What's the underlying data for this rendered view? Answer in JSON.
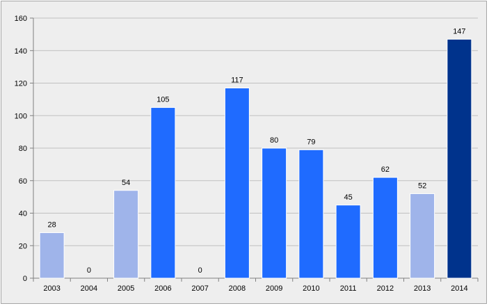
{
  "chart_data": {
    "type": "bar",
    "title": "",
    "xlabel": "",
    "ylabel": "",
    "categories": [
      "2003",
      "2004",
      "2005",
      "2006",
      "2007",
      "2008",
      "2009",
      "2010",
      "2011",
      "2012",
      "2013",
      "2014"
    ],
    "values": [
      28,
      0,
      54,
      105,
      0,
      117,
      80,
      79,
      45,
      62,
      52,
      147
    ],
    "bar_colors": [
      "#9fb4ea",
      "#9fb4ea",
      "#9fb4ea",
      "#1f6bff",
      "#9fb4ea",
      "#1f6bff",
      "#1f6bff",
      "#1f6bff",
      "#1f6bff",
      "#1f6bff",
      "#9fb4ea",
      "#00338c"
    ],
    "ylim": [
      0,
      160
    ],
    "yticks": [
      0,
      20,
      40,
      60,
      80,
      100,
      120,
      140,
      160
    ],
    "grid": true,
    "legend": "none",
    "background_color": "#eeeeee",
    "grid_color": "#c0c0c0"
  }
}
